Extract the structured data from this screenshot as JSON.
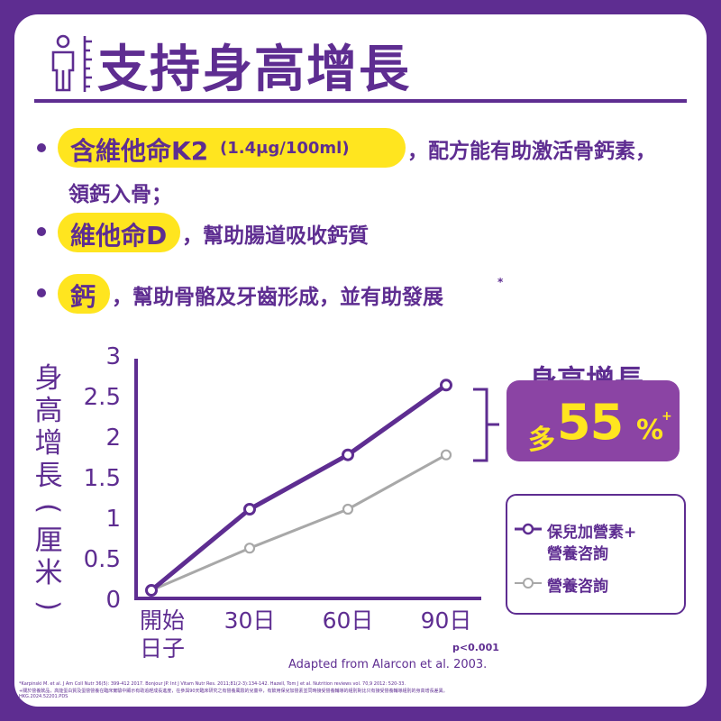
{
  "header": {
    "title": "支持身高增長",
    "icon": "height-measure-icon"
  },
  "bullets": [
    {
      "highlight": "含維他命K2",
      "highlight_sub": "(1.4μg/100ml)",
      "text_line1": "，配方能有助激活骨鈣素，",
      "text_line2": "領鈣入骨；"
    },
    {
      "highlight": "維他命D",
      "text_line1": "，幫助腸道吸收鈣質"
    },
    {
      "highlight": "鈣",
      "text_line1": "，幫助骨骼及牙齒形成，並有助發展",
      "mark": "*"
    }
  ],
  "chart_data": {
    "type": "line",
    "categories": [
      "開始日子",
      "30日",
      "60日",
      "90日"
    ],
    "y_ticks": [
      "0",
      "0.5",
      "1",
      "1.5",
      "2",
      "2.5",
      "3"
    ],
    "ylabel": "身高增長(厘米)",
    "ylim": [
      0,
      3
    ],
    "grid": false,
    "legend_position": "right",
    "series": [
      {
        "name": "保兒加營素+營養咨詢",
        "values": [
          0.1,
          1.1,
          1.77,
          2.63
        ],
        "color": "#5e2d91"
      },
      {
        "name": "營養咨詢",
        "values": [
          0.1,
          0.62,
          1.1,
          1.77
        ],
        "color": "#a8a8a8"
      }
    ],
    "annotations": {
      "callout_title": "身高增長",
      "callout_prefix": "多",
      "callout_value": "55",
      "callout_unit": "%",
      "callout_mark": "+",
      "p_value": "p<0.001",
      "source": "Adapted from Alarcon et al. 2003."
    }
  },
  "legend": {
    "item1_line1": "保兒加營素+",
    "item1_line2": "營養咨詢",
    "item2": "營養咨詢"
  },
  "footnotes": {
    "refs": "*Karpinski M. et al. J Am Coll Nutr 36(5): 399-412 2017. Bonjour JP. Int J Vitam Nutr Res. 2011;81(2-3):134-142. Hazell, Tom J et al. Nutrition reviews vol. 70,9 2012: 520-33.",
    "note": "+關於營養飲品，高能蛋白質及蛋營營養在臨床實驗中顯示有助追趕成長進度，在參與90天臨床研究之有營養風險的兒童中，有飲用保兒加營素並同時接受營養輔導的組別對比只有接受營養輔導組別的身高增長差異。",
    "code": "HKG.2024.52201.PDS"
  },
  "colors": {
    "brand": "#5e2d91",
    "highlight": "#ffe51f",
    "callout": "#8b44a4",
    "control": "#a8a8a8"
  }
}
